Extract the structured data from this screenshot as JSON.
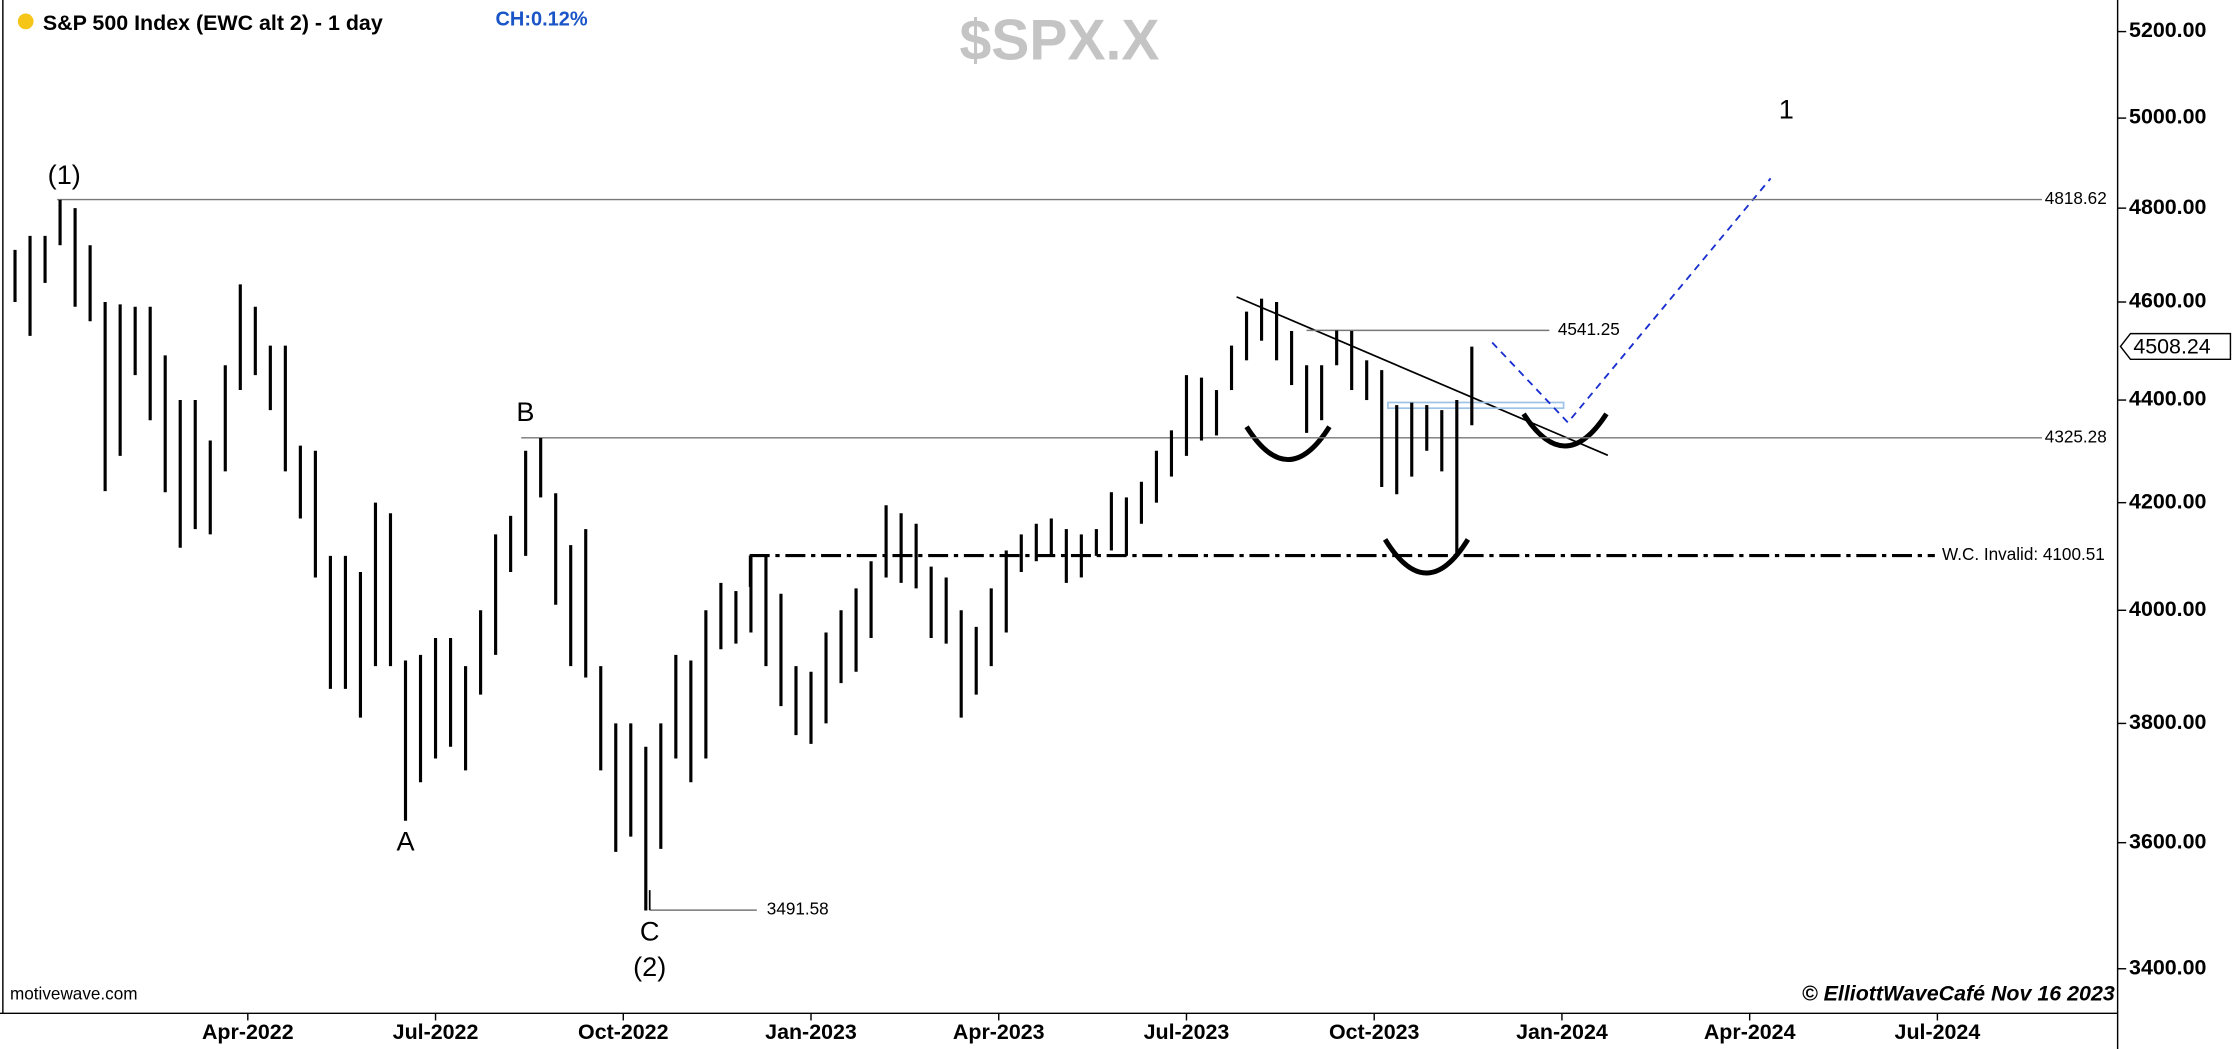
{
  "chart_data": {
    "type": "ohlc",
    "title": "S&P 500 Index (EWC alt 2) - 1 day",
    "change": "CH:0.12%",
    "watermark": "$SPX.X",
    "source": "motivewave.com",
    "credit": "© ElliottWaveCafé Nov 16 2023",
    "color": "#000000",
    "log_scale": true,
    "x": [
      2021.94,
      2021.96,
      2021.98,
      2022.0,
      2022.02,
      2022.04,
      2022.06,
      2022.08,
      2022.1,
      2022.12,
      2022.14,
      2022.16,
      2022.18,
      2022.2,
      2022.22,
      2022.24,
      2022.26,
      2022.28,
      2022.3,
      2022.32,
      2022.34,
      2022.36,
      2022.38,
      2022.4,
      2022.42,
      2022.44,
      2022.46,
      2022.48,
      2022.5,
      2022.52,
      2022.54,
      2022.56,
      2022.58,
      2022.6,
      2022.62,
      2022.64,
      2022.66,
      2022.68,
      2022.7,
      2022.72,
      2022.74,
      2022.76,
      2022.78,
      2022.8,
      2022.82,
      2022.84,
      2022.86,
      2022.88,
      2022.9,
      2022.92,
      2022.94,
      2022.96,
      2022.98,
      2023.0,
      2023.02,
      2023.04,
      2023.06,
      2023.08,
      2023.1,
      2023.12,
      2023.14,
      2023.16,
      2023.18,
      2023.2,
      2023.22,
      2023.24,
      2023.26,
      2023.28,
      2023.3,
      2023.32,
      2023.34,
      2023.36,
      2023.38,
      2023.4,
      2023.42,
      2023.44,
      2023.46,
      2023.48,
      2023.5,
      2023.52,
      2023.54,
      2023.56,
      2023.58,
      2023.6,
      2023.62,
      2023.64,
      2023.66,
      2023.68,
      2023.7,
      2023.72,
      2023.74,
      2023.76,
      2023.78,
      2023.8,
      2023.82,
      2023.84,
      2023.86,
      2023.88
    ],
    "high": [
      4710,
      4740,
      4740,
      4818,
      4800,
      4720,
      4600,
      4595,
      4590,
      4590,
      4490,
      4400,
      4400,
      4320,
      4470,
      4637,
      4590,
      4510,
      4510,
      4310,
      4300,
      4100,
      4100,
      4070,
      4200,
      4180,
      3910,
      3920,
      3950,
      3950,
      3900,
      4000,
      4140,
      4175,
      4300,
      4325,
      4218,
      4120,
      4150,
      3900,
      3800,
      3800,
      3760,
      3800,
      3920,
      3910,
      4000,
      4050,
      4035,
      4100,
      4100,
      4030,
      3900,
      3890,
      3960,
      4000,
      4040,
      4090,
      4195,
      4180,
      4160,
      4080,
      4060,
      4000,
      3970,
      4040,
      4110,
      4140,
      4160,
      4170,
      4150,
      4140,
      4150,
      4220,
      4210,
      4240,
      4300,
      4340,
      4450,
      4445,
      4420,
      4510,
      4580,
      4607,
      4600,
      4540,
      4470,
      4470,
      4541,
      4540,
      4480,
      4460,
      4390,
      4395,
      4390,
      4380,
      4400,
      4508
    ],
    "low": [
      4600,
      4530,
      4640,
      4720,
      4590,
      4560,
      4222,
      4290,
      4450,
      4360,
      4220,
      4115,
      4150,
      4140,
      4260,
      4420,
      4450,
      4380,
      4260,
      4170,
      4060,
      3860,
      3860,
      3810,
      3900,
      3900,
      3636,
      3700,
      3740,
      3760,
      3720,
      3850,
      3920,
      4070,
      4100,
      4210,
      4010,
      3900,
      3880,
      3720,
      3585,
      3610,
      3491,
      3590,
      3740,
      3700,
      3740,
      3930,
      3940,
      3960,
      3900,
      3830,
      3780,
      3765,
      3800,
      3870,
      3890,
      3950,
      4060,
      4050,
      4040,
      3950,
      3940,
      3810,
      3850,
      3900,
      3960,
      4070,
      4090,
      4100,
      4050,
      4060,
      4100,
      4110,
      4100,
      4160,
      4200,
      4250,
      4290,
      4320,
      4330,
      4420,
      4480,
      4520,
      4480,
      4430,
      4335,
      4360,
      4470,
      4420,
      4400,
      4230,
      4216,
      4250,
      4300,
      4260,
      4100,
      4350
    ],
    "xlim": [
      2021.92,
      2024.74
    ],
    "xticks": [
      {
        "value": 2022.25,
        "label": "Apr-2022"
      },
      {
        "value": 2022.5,
        "label": "Jul-2022"
      },
      {
        "value": 2022.75,
        "label": "Oct-2022"
      },
      {
        "value": 2023.0,
        "label": "Jan-2023"
      },
      {
        "value": 2023.25,
        "label": "Apr-2023"
      },
      {
        "value": 2023.5,
        "label": "Jul-2023"
      },
      {
        "value": 2023.75,
        "label": "Oct-2023"
      },
      {
        "value": 2024.0,
        "label": "Jan-2024"
      },
      {
        "value": 2024.25,
        "label": "Apr-2024"
      },
      {
        "value": 2024.5,
        "label": "Jul-2024"
      }
    ],
    "ylim": [
      3332,
      5275
    ],
    "yticks": [
      {
        "value": 3400,
        "label": "3400.00"
      },
      {
        "value": 3600,
        "label": "3600.00"
      },
      {
        "value": 3800,
        "label": "3800.00"
      },
      {
        "value": 4000,
        "label": "4000.00"
      },
      {
        "value": 4200,
        "label": "4200.00"
      },
      {
        "value": 4400,
        "label": "4400.00"
      },
      {
        "value": 4600,
        "label": "4600.00"
      },
      {
        "value": 4800,
        "label": "4800.00"
      },
      {
        "value": 5000,
        "label": "5000.00"
      },
      {
        "value": 5200,
        "label": "5200.00"
      }
    ],
    "levels": [
      4818.62,
      4541.25,
      4325.28,
      3491.58,
      {
        "value": 4100.51,
        "label": "W.C. Invalid: 4100.51"
      }
    ],
    "last_price": 4508.24,
    "wave_labels": [
      "(1)",
      "B",
      "A",
      "C",
      "(2)",
      "1"
    ]
  }
}
